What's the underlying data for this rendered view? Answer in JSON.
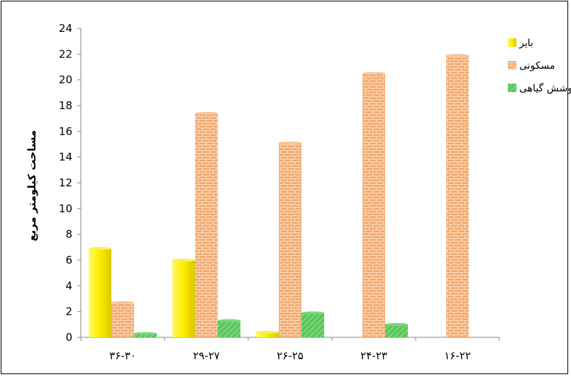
{
  "chart_data": {
    "type": "bar",
    "categories": [
      "۳۶-۳۰",
      "۲۹-۲۷",
      "۲۶-۲۵",
      "۲۴-۲۳",
      "۱۶-۲۲"
    ],
    "series": [
      {
        "name": "بایر",
        "values": [
          6.9,
          6.0,
          0.4,
          0,
          0
        ],
        "color": "#f2e600"
      },
      {
        "name": "مسکونی",
        "values": [
          2.7,
          17.4,
          15.1,
          20.5,
          21.9
        ],
        "color": "#f0a46a"
      },
      {
        "name": "پوشش گیاهی",
        "values": [
          0.3,
          1.3,
          1.9,
          1.0,
          0
        ],
        "color": "#4fbf4f"
      }
    ],
    "ylabel": "مساحت کیلومتر مربع",
    "ylim": [
      0,
      24
    ],
    "yticks": [
      0,
      2,
      4,
      6,
      8,
      10,
      12,
      14,
      16,
      18,
      20,
      22,
      24
    ],
    "legend_position": "top-right",
    "grid": false
  }
}
